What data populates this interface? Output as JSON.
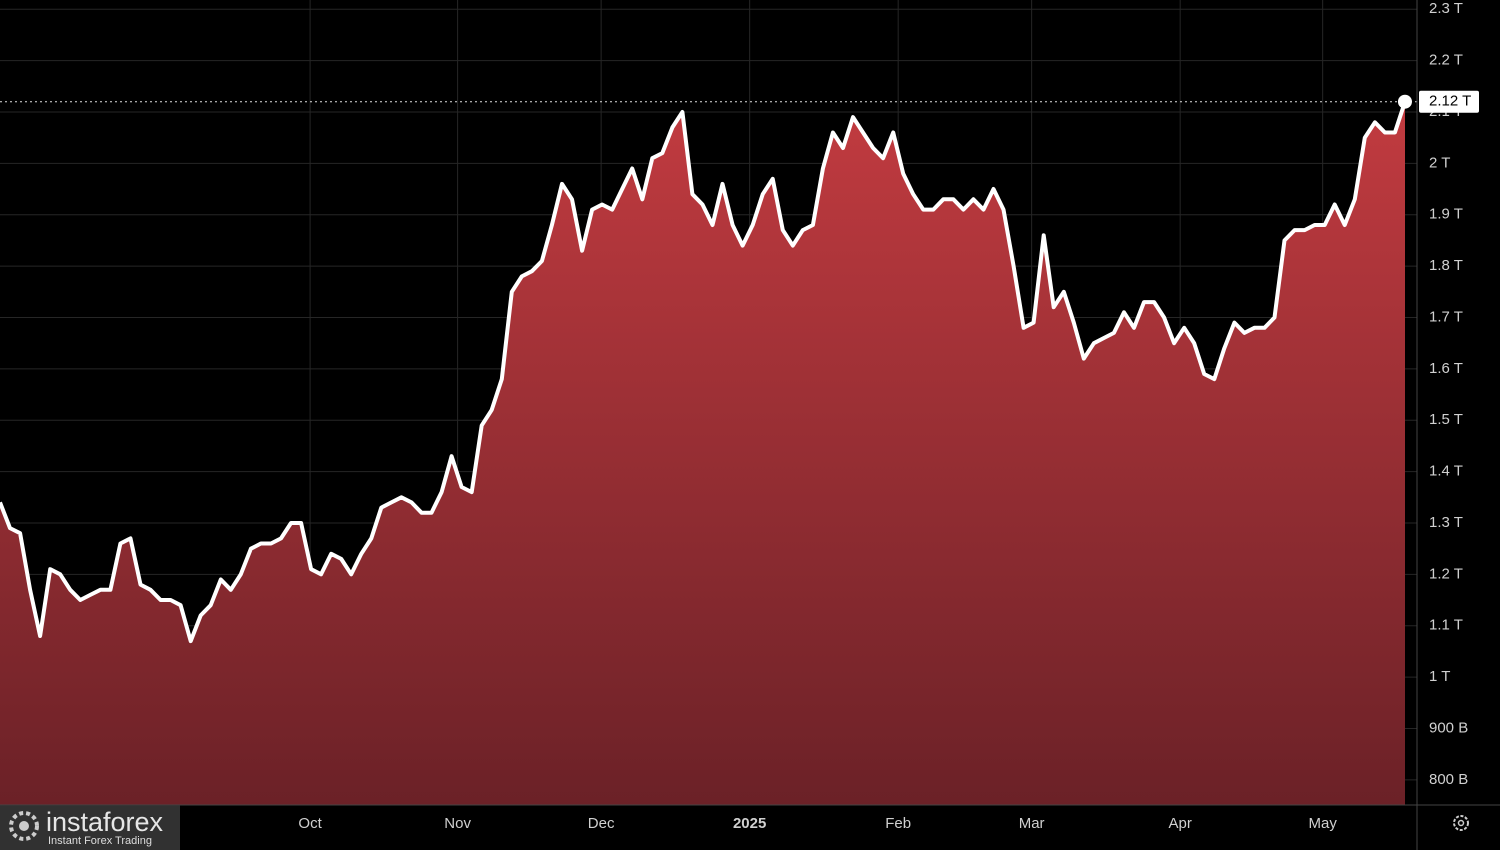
{
  "chart_data": {
    "type": "area",
    "values": [
      1.34,
      1.29,
      1.28,
      1.17,
      1.08,
      1.21,
      1.2,
      1.17,
      1.15,
      1.16,
      1.17,
      1.17,
      1.26,
      1.27,
      1.18,
      1.17,
      1.15,
      1.15,
      1.14,
      1.07,
      1.12,
      1.14,
      1.19,
      1.17,
      1.2,
      1.25,
      1.26,
      1.26,
      1.27,
      1.3,
      1.3,
      1.21,
      1.2,
      1.24,
      1.23,
      1.2,
      1.24,
      1.27,
      1.33,
      1.34,
      1.35,
      1.34,
      1.32,
      1.32,
      1.36,
      1.43,
      1.37,
      1.36,
      1.49,
      1.52,
      1.58,
      1.75,
      1.78,
      1.79,
      1.81,
      1.88,
      1.96,
      1.93,
      1.83,
      1.91,
      1.92,
      1.91,
      1.95,
      1.99,
      1.93,
      2.01,
      2.02,
      2.07,
      2.1,
      1.94,
      1.92,
      1.88,
      1.96,
      1.88,
      1.84,
      1.88,
      1.94,
      1.97,
      1.87,
      1.84,
      1.87,
      1.88,
      1.99,
      2.06,
      2.03,
      2.09,
      2.06,
      2.03,
      2.01,
      2.06,
      1.98,
      1.94,
      1.91,
      1.91,
      1.93,
      1.93,
      1.91,
      1.93,
      1.91,
      1.95,
      1.91,
      1.8,
      1.68,
      1.69,
      1.86,
      1.72,
      1.75,
      1.69,
      1.62,
      1.65,
      1.66,
      1.67,
      1.71,
      1.68,
      1.73,
      1.73,
      1.7,
      1.65,
      1.68,
      1.65,
      1.59,
      1.58,
      1.64,
      1.69,
      1.67,
      1.68,
      1.68,
      1.7,
      1.85,
      1.87,
      1.87,
      1.88,
      1.88,
      1.92,
      1.88,
      1.93,
      2.05,
      2.08,
      2.06,
      2.06,
      2.12
    ],
    "value_labels": [
      null,
      null,
      null,
      null,
      null,
      null,
      null,
      null,
      null,
      null,
      null,
      null,
      null,
      null,
      null,
      null,
      null,
      null,
      null,
      null,
      null,
      null,
      null,
      null,
      null,
      null,
      null,
      null,
      null,
      null,
      null,
      null,
      null,
      null,
      null,
      null,
      null,
      null,
      null,
      null,
      null,
      null,
      null,
      null,
      null,
      null,
      null,
      null,
      null,
      null,
      null,
      null,
      null,
      null,
      null,
      null,
      null,
      null,
      null,
      null,
      null,
      null,
      null,
      null,
      null,
      null,
      null,
      null,
      null,
      null,
      null,
      null,
      null,
      null,
      null,
      null,
      null,
      null,
      null,
      null,
      null,
      null,
      null,
      null,
      null,
      null,
      null,
      null,
      null,
      null,
      null,
      null,
      null,
      null,
      null,
      null,
      null,
      null,
      null,
      null,
      null,
      null,
      null,
      null,
      null,
      null,
      null,
      null,
      null,
      null,
      null,
      null,
      null,
      null,
      null,
      null,
      null,
      null,
      null,
      null,
      null,
      null,
      null,
      null,
      null,
      null,
      null,
      null,
      null,
      null,
      null,
      null,
      null,
      null,
      null,
      null,
      null,
      null,
      null,
      null,
      "2.12 T"
    ],
    "color_top": "#c23b40",
    "color_bottom": "#6b2127",
    "line_color": "#ffffff",
    "xlim": [
      0,
      141.2
    ],
    "xticks": [
      {
        "value": 30.9,
        "label": "Oct"
      },
      {
        "value": 45.6,
        "label": "Nov"
      },
      {
        "value": 59.9,
        "label": "Dec"
      },
      {
        "value": 74.7,
        "label": "2025"
      },
      {
        "value": 89.5,
        "label": "Feb"
      },
      {
        "value": 102.8,
        "label": "Mar"
      },
      {
        "value": 117.6,
        "label": "Apr"
      },
      {
        "value": 131.8,
        "label": "May"
      }
    ],
    "ylim": [
      0.751,
      2.318
    ],
    "yticks": [
      {
        "value": 0.8,
        "label": "800 B"
      },
      {
        "value": 0.9,
        "label": "900 B"
      },
      {
        "value": 1,
        "label": "1 T"
      },
      {
        "value": 1.1,
        "label": "1.1 T"
      },
      {
        "value": 1.2,
        "label": "1.2 T"
      },
      {
        "value": 1.3,
        "label": "1.3 T"
      },
      {
        "value": 1.4,
        "label": "1.4 T"
      },
      {
        "value": 1.5,
        "label": "1.5 T"
      },
      {
        "value": 1.6,
        "label": "1.6 T"
      },
      {
        "value": 1.7,
        "label": "1.7 T"
      },
      {
        "value": 1.8,
        "label": "1.8 T"
      },
      {
        "value": 1.9,
        "label": "1.9 T"
      },
      {
        "value": 2,
        "label": "2 T"
      },
      {
        "value": 2.1,
        "label": "2.1 T"
      },
      {
        "value": 2.2,
        "label": "2.2 T"
      },
      {
        "value": 2.3,
        "label": "2.3 T"
      }
    ],
    "grid": true
  },
  "watermark": {
    "name": "instaforex",
    "tagline": "Instant Forex Trading"
  }
}
